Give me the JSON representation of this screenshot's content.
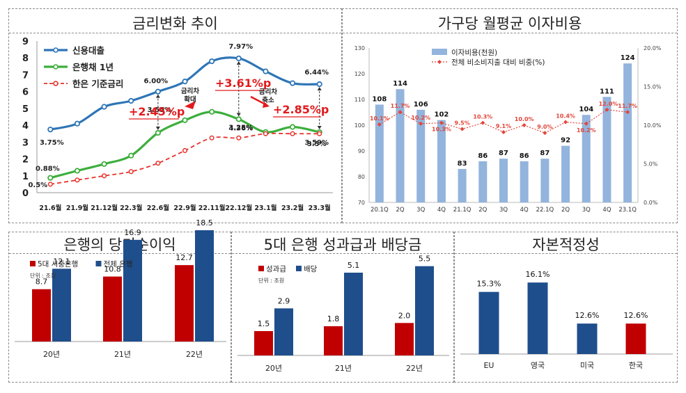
{
  "colors": {
    "credit": "#2E75B6",
    "bond": "#3DAE3D",
    "base": "#E8302A",
    "red_text": "#E31A1C",
    "bar_blue": "#93B4DC",
    "dark_blue": "#1F4E8C",
    "dark_red": "#C00000"
  },
  "panels": {
    "p1_title": "금리변화 추이",
    "p2_title": "가구당 월평균 이자비용",
    "p3_title": "은행의 당기순이익",
    "p4_title": "5대 은행 성과급과 배당금",
    "p5_title": "자본적정성"
  },
  "chart_data": [
    {
      "type": "line",
      "title": "금리변화 추이",
      "categories": [
        "21.6월",
        "21.9월",
        "21.12월",
        "22.3월",
        "22.6월",
        "22.9월",
        "22.11월",
        "22.12월",
        "23.1월",
        "23.2월",
        "23.3월"
      ],
      "ylim": [
        0,
        9
      ],
      "yticks": [
        "0",
        "1",
        "2",
        "3",
        "4",
        "5",
        "6",
        "7",
        "8",
        "9"
      ],
      "legend_position": "top-left",
      "series": [
        {
          "name": "신용대출",
          "values": [
            3.75,
            4.1,
            5.1,
            5.45,
            6.0,
            6.6,
            7.8,
            7.97,
            7.2,
            6.5,
            6.44
          ]
        },
        {
          "name": "은행채 1년",
          "values": [
            0.88,
            1.3,
            1.7,
            2.2,
            3.55,
            4.3,
            4.8,
            4.36,
            3.6,
            3.9,
            3.59
          ]
        },
        {
          "name": "한은 기준금리",
          "values": [
            0.5,
            0.75,
            1.0,
            1.25,
            1.75,
            2.5,
            3.25,
            3.25,
            3.5,
            3.5,
            3.5
          ]
        }
      ],
      "point_labels": {
        "credit": [
          "3.75%",
          "6.00%",
          "7.97%",
          "6.44%"
        ],
        "bond": [
          "0.88%",
          "3.55%",
          "4.36%",
          "3.59%"
        ],
        "base": [
          "0.5%",
          "3.25%",
          "3.5%"
        ]
      },
      "annotations": {
        "gap1": "+2.45%p",
        "gap2": "+3.61%p",
        "gap3": "+2.85%p",
        "note1a": "금리차",
        "note1b": "확대",
        "note2a": "금리차",
        "note2b": "축소"
      }
    },
    {
      "type": "bar",
      "title": "가구당 월평균 이자비용",
      "categories": [
        "20.1Q",
        "2Q",
        "3Q",
        "4Q",
        "21.1Q",
        "2Q",
        "3Q",
        "4Q",
        "22.1Q",
        "2Q",
        "3Q",
        "4Q",
        "23.1Q"
      ],
      "ylim": [
        70,
        130
      ],
      "yticks": [
        "70",
        "80",
        "90",
        "100",
        "110",
        "120",
        "130"
      ],
      "y2lim": [
        0,
        20
      ],
      "y2ticks": [
        "0.0%",
        "5.0%",
        "10.0%",
        "15.0%",
        "20.0%"
      ],
      "legend_position": "top-left",
      "series": [
        {
          "name": "이자비용(천원)",
          "values": [
            108,
            114,
            106,
            102,
            83,
            86,
            87,
            86,
            87,
            92,
            104,
            111,
            124
          ]
        },
        {
          "name": "전체 비소비지출 대비 비중(%)",
          "values": [
            10.1,
            11.7,
            10.2,
            10.3,
            9.5,
            10.3,
            9.1,
            10.0,
            9.0,
            10.4,
            10.2,
            12.0,
            11.7
          ]
        }
      ],
      "bar_labels": [
        "108",
        "114",
        "106",
        "102",
        "83",
        "86",
        "87",
        "86",
        "87",
        "92",
        "104",
        "111",
        "124"
      ],
      "line_labels": [
        "10.1%",
        "11.7%",
        "10.2%",
        "10.3%",
        "9.5%",
        "10.3%",
        "9.1%",
        "10.0%",
        "9.0%",
        "10.4%",
        "10.2%",
        "12.0%",
        "11.7%"
      ]
    },
    {
      "type": "bar",
      "title": "은행의 당기순이익",
      "unit": "단위 : 조원",
      "categories": [
        "20년",
        "21년",
        "22년"
      ],
      "ylim": [
        0,
        20
      ],
      "legend_position": "top-left",
      "series": [
        {
          "name": "5대 시중은행",
          "values": [
            8.7,
            10.8,
            12.7
          ]
        },
        {
          "name": "전체 은행",
          "values": [
            12.1,
            16.9,
            18.5
          ]
        }
      ],
      "labels": [
        [
          "8.7",
          "10.8",
          "12.7"
        ],
        [
          "12.1",
          "16.9",
          "18.5"
        ]
      ]
    },
    {
      "type": "bar",
      "title": "5대 은행 성과급과 배당금",
      "unit": "단위 : 조원",
      "categories": [
        "20년",
        "21년",
        "22년"
      ],
      "ylim": [
        0,
        6
      ],
      "legend_position": "top-left",
      "series": [
        {
          "name": "성과급",
          "values": [
            1.5,
            1.8,
            2.0
          ]
        },
        {
          "name": "배당",
          "values": [
            2.9,
            5.1,
            5.5
          ]
        }
      ],
      "labels": [
        [
          "1.5",
          "1.8",
          "2.0"
        ],
        [
          "2.9",
          "5.1",
          "5.5"
        ]
      ]
    },
    {
      "type": "bar",
      "title": "자본적정성",
      "categories": [
        "EU",
        "영국",
        "미국",
        "한국"
      ],
      "ylim": [
        0,
        17
      ],
      "series": [
        {
          "values": [
            15.3,
            16.1,
            12.6,
            12.6
          ]
        }
      ],
      "labels": [
        "15.3%",
        "16.1%",
        "12.6%",
        "12.6%"
      ]
    }
  ]
}
